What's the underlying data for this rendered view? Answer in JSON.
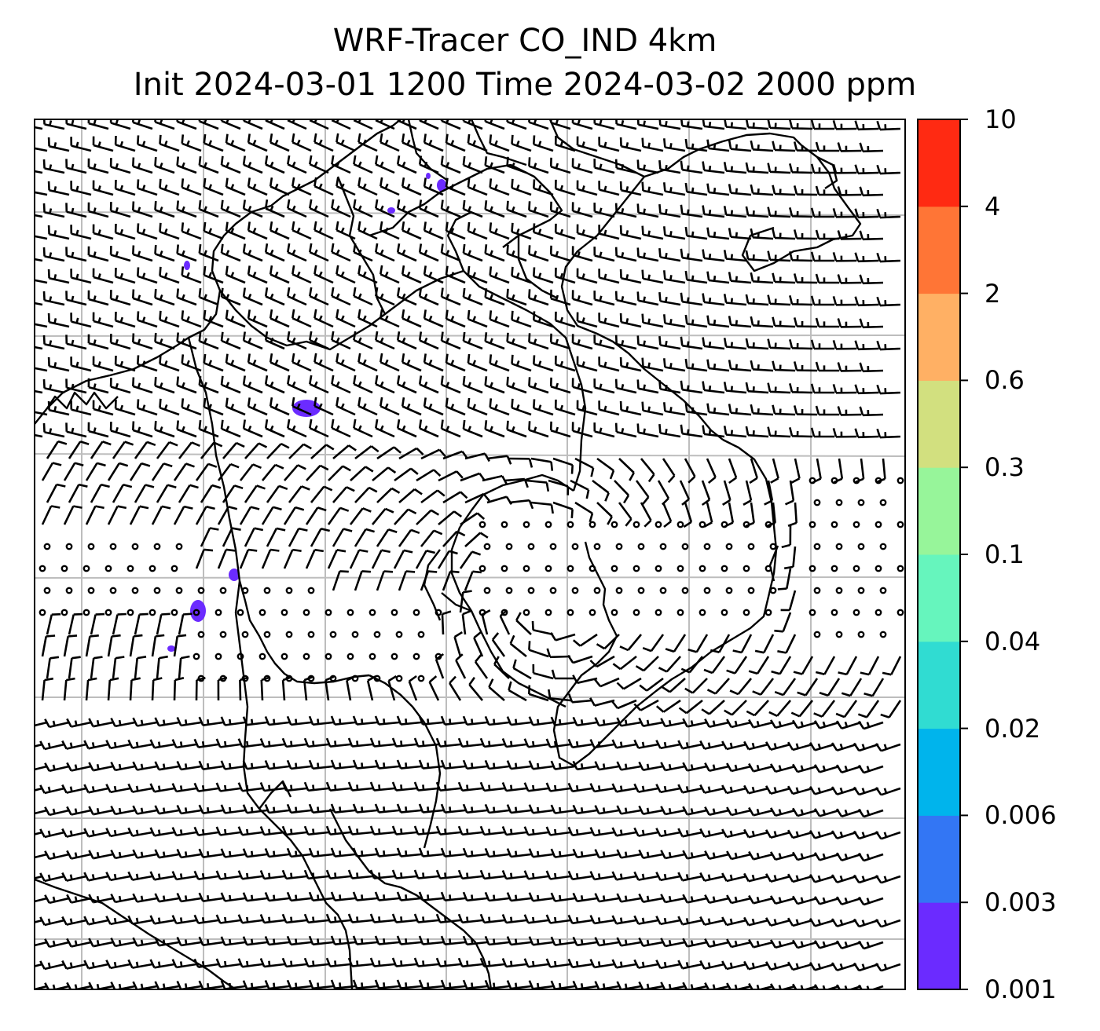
{
  "title": {
    "line1": "WRF-Tracer CO_IND 4km",
    "line2": "Init 2024-03-01 1200 Time 2024-03-02 2000 ppm"
  },
  "colorbar": {
    "levels": [
      "0.001",
      "0.003",
      "0.006",
      "0.02",
      "0.04",
      "0.1",
      "0.3",
      "0.6",
      "2",
      "4",
      "10"
    ],
    "colors": [
      "#6b2bff",
      "#3376f4",
      "#00b4ec",
      "#30dcd2",
      "#66f5bd",
      "#97f59a",
      "#d2e07f",
      "#ffb064",
      "#ff7536",
      "#ff2a12"
    ]
  },
  "map": {
    "gridline_color": "#bdbdbd",
    "coastline_color": "#000000",
    "tracer_fill_color": "#6b2bff"
  }
}
